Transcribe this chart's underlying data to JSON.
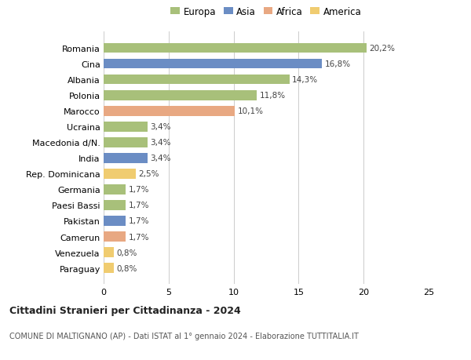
{
  "countries": [
    "Romania",
    "Cina",
    "Albania",
    "Polonia",
    "Marocco",
    "Ucraina",
    "Macedonia d/N.",
    "India",
    "Rep. Dominicana",
    "Germania",
    "Paesi Bassi",
    "Pakistan",
    "Camerun",
    "Venezuela",
    "Paraguay"
  ],
  "values": [
    20.2,
    16.8,
    14.3,
    11.8,
    10.1,
    3.4,
    3.4,
    3.4,
    2.5,
    1.7,
    1.7,
    1.7,
    1.7,
    0.8,
    0.8
  ],
  "labels": [
    "20,2%",
    "16,8%",
    "14,3%",
    "11,8%",
    "10,1%",
    "3,4%",
    "3,4%",
    "3,4%",
    "2,5%",
    "1,7%",
    "1,7%",
    "1,7%",
    "1,7%",
    "0,8%",
    "0,8%"
  ],
  "continents": [
    "Europa",
    "Asia",
    "Europa",
    "Europa",
    "Africa",
    "Europa",
    "Europa",
    "Asia",
    "America",
    "Europa",
    "Europa",
    "Asia",
    "Africa",
    "America",
    "America"
  ],
  "colors": {
    "Europa": "#a8c07a",
    "Asia": "#6b8dc4",
    "Africa": "#e8a882",
    "America": "#f0cc70"
  },
  "legend_order": [
    "Europa",
    "Asia",
    "Africa",
    "America"
  ],
  "xlim": [
    0,
    25
  ],
  "xticks": [
    0,
    5,
    10,
    15,
    20,
    25
  ],
  "title": "Cittadini Stranieri per Cittadinanza - 2024",
  "subtitle": "COMUNE DI MALTIGNANO (AP) - Dati ISTAT al 1° gennaio 2024 - Elaborazione TUTTITALIA.IT",
  "background_color": "#ffffff",
  "grid_color": "#cccccc"
}
